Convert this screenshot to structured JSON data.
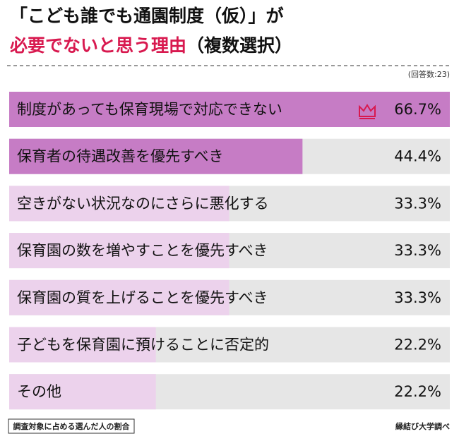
{
  "chart_data": {
    "type": "bar",
    "orientation": "horizontal",
    "title": [
      "「こども誰でも通園制度（仮）」が",
      "必要でないと思う理由",
      "（複数選択）"
    ],
    "subtitle": "(回答数:23)",
    "categories": [
      "制度があっても保育現場で対応できない",
      "保育者の待遇改善を優先すべき",
      "空きがない状況なのにさらに悪化する",
      "保育園の数を増やすことを優先すべき",
      "保育園の質を上げることを優先すべき",
      "子どもを保育園に預けることに否定的",
      "その他"
    ],
    "values": [
      66.7,
      44.4,
      33.3,
      33.3,
      33.3,
      22.2,
      22.2
    ],
    "value_labels": [
      "66.7%",
      "44.4%",
      "33.3%",
      "33.3%",
      "33.3%",
      "22.2%",
      "22.2%"
    ],
    "colors": [
      "#c67cc5",
      "#c67cc5",
      "#ecd2ec",
      "#ecd2ec",
      "#ecd2ec",
      "#ecd2ec",
      "#ecd2ec"
    ],
    "xlim": [
      0,
      66.7
    ],
    "note": "調査対象に占める選んだ人の割合",
    "source": "縁結び大学調べ"
  }
}
